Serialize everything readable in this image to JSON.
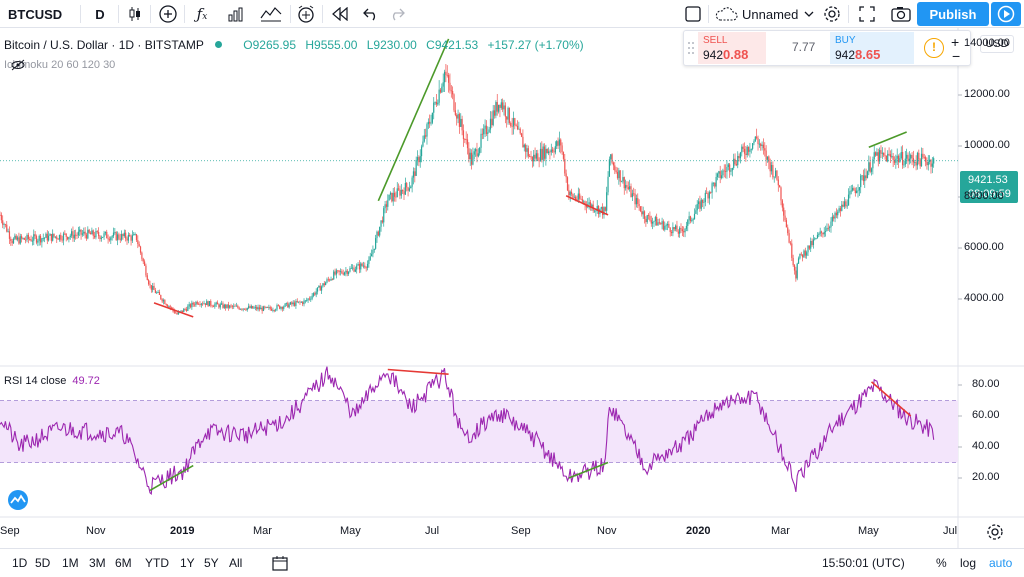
{
  "toolbar": {
    "symbol": "BTCUSD",
    "interval": "D",
    "layout_name": "Unnamed",
    "publish_label": "Publish",
    "icons": [
      "candles-icon",
      "add-compare-icon",
      "indicators-icon",
      "templates-icon",
      "alert-icon",
      "replay-icon",
      "undo-icon",
      "redo-icon",
      "fullscreen-icon",
      "cloud-icon",
      "settings-icon",
      "snapshot-icon"
    ]
  },
  "legend": {
    "title": "Bitcoin / U.S. Dollar · 1D · BITSTAMP",
    "open": "O9265.95",
    "high": "H9555.00",
    "low": "L9230.00",
    "close": "C9421.53",
    "change": "+157.27 (+1.70%)",
    "ichimoku": "Ichimoku 20 60 120 30"
  },
  "trade": {
    "sell_label": "SELL",
    "sell_price_main": "942",
    "sell_price_hl": "0.88",
    "spread": "7.77",
    "buy_label": "BUY",
    "buy_price_main": "942",
    "buy_price_hl": "8.65",
    "info": "!"
  },
  "price_axis": {
    "currency": "USD",
    "ticks": [
      "14000.00",
      "12000.00",
      "10000.00",
      "8000.00",
      "6000.00",
      "4000.00"
    ],
    "tick_values": [
      14000,
      12000,
      10000,
      8000,
      6000,
      4000
    ],
    "current_price": "9421.53",
    "countdown": "08:09:59"
  },
  "rsi": {
    "label": "RSI 14 close",
    "value": "49.72",
    "ticks": [
      "80.00",
      "60.00",
      "40.00",
      "20.00"
    ],
    "tick_values": [
      80,
      60,
      40,
      20
    ],
    "upper_band": 70,
    "lower_band": 30
  },
  "time_axis": [
    "Sep",
    "Nov",
    "2019",
    "Mar",
    "May",
    "Jul",
    "Sep",
    "Nov",
    "2020",
    "Mar",
    "May",
    "Jul"
  ],
  "bottom": {
    "ranges": [
      "1D",
      "5D",
      "1M",
      "3M",
      "6M",
      "YTD",
      "1Y",
      "5Y",
      "All"
    ],
    "clock": "15:50:01 (UTC)",
    "percent": "%",
    "log": "log",
    "auto": "auto"
  },
  "colors": {
    "up": "#26a69a",
    "down": "#ef5350",
    "rsi": "#9c27b0",
    "rsi_band": "#f3e5fb",
    "accent": "#2196f3",
    "trend_green": "#4c9a2a",
    "trend_red": "#e53935"
  },
  "chart_data": {
    "type": "candlestick",
    "price_anchors": [
      [
        "2018-08-01",
        7300
      ],
      [
        "2018-08-10",
        6300
      ],
      [
        "2018-09-01",
        6400
      ],
      [
        "2018-10-01",
        6550
      ],
      [
        "2018-11-10",
        6400
      ],
      [
        "2018-11-20",
        4500
      ],
      [
        "2018-12-10",
        3400
      ],
      [
        "2018-12-25",
        3900
      ],
      [
        "2019-01-15",
        3700
      ],
      [
        "2019-02-15",
        3600
      ],
      [
        "2019-03-15",
        3900
      ],
      [
        "2019-04-05",
        4950
      ],
      [
        "2019-05-01",
        5400
      ],
      [
        "2019-05-15",
        7900
      ],
      [
        "2019-06-01",
        8500
      ],
      [
        "2019-06-26",
        12900
      ],
      [
        "2019-07-16",
        9400
      ],
      [
        "2019-08-06",
        11800
      ],
      [
        "2019-08-29",
        9500
      ],
      [
        "2019-09-20",
        10100
      ],
      [
        "2019-09-26",
        8100
      ],
      [
        "2019-10-23",
        7400
      ],
      [
        "2019-10-26",
        9500
      ],
      [
        "2019-11-22",
        7200
      ],
      [
        "2019-12-18",
        6600
      ],
      [
        "2020-01-15",
        8800
      ],
      [
        "2020-02-12",
        10300
      ],
      [
        "2020-02-28",
        8600
      ],
      [
        "2020-03-12",
        4900
      ],
      [
        "2020-03-13",
        5500
      ],
      [
        "2020-04-10",
        7200
      ],
      [
        "2020-04-30",
        8700
      ],
      [
        "2020-05-10",
        9600
      ],
      [
        "2020-06-01",
        9500
      ],
      [
        "2020-06-22",
        9420
      ]
    ],
    "rsi_anchors": [
      [
        "2018-08-01",
        60
      ],
      [
        "2018-08-15",
        40
      ],
      [
        "2018-09-15",
        52
      ],
      [
        "2018-11-01",
        48
      ],
      [
        "2018-11-20",
        15
      ],
      [
        "2018-12-15",
        25
      ],
      [
        "2018-12-31",
        50
      ],
      [
        "2019-02-01",
        48
      ],
      [
        "2019-03-01",
        58
      ],
      [
        "2019-04-02",
        88
      ],
      [
        "2019-04-20",
        60
      ],
      [
        "2019-05-14",
        90
      ],
      [
        "2019-06-01",
        65
      ],
      [
        "2019-06-26",
        87
      ],
      [
        "2019-07-10",
        45
      ],
      [
        "2019-08-06",
        62
      ],
      [
        "2019-09-01",
        45
      ],
      [
        "2019-09-26",
        20
      ],
      [
        "2019-10-23",
        28
      ],
      [
        "2019-10-26",
        68
      ],
      [
        "2019-11-22",
        28
      ],
      [
        "2019-12-20",
        42
      ],
      [
        "2020-01-15",
        68
      ],
      [
        "2020-02-12",
        72
      ],
      [
        "2020-03-12",
        16
      ],
      [
        "2020-04-10",
        55
      ],
      [
        "2020-05-10",
        80
      ],
      [
        "2020-06-01",
        60
      ],
      [
        "2020-06-22",
        50
      ]
    ],
    "divergence_lines": [
      {
        "pane": "price",
        "from": [
          "2018-11-23",
          3850
        ],
        "to": [
          "2018-12-22",
          3300
        ],
        "color": "red"
      },
      {
        "pane": "price",
        "from": [
          "2019-05-08",
          7850
        ],
        "to": [
          "2019-06-29",
          14200
        ],
        "color": "green"
      },
      {
        "pane": "price",
        "from": [
          "2019-09-24",
          8050
        ],
        "to": [
          "2019-10-25",
          7300
        ],
        "color": "red"
      },
      {
        "pane": "price",
        "from": [
          "2020-05-05",
          9950
        ],
        "to": [
          "2020-06-02",
          10550
        ],
        "color": "green"
      },
      {
        "pane": "rsi",
        "from": [
          "2018-11-20",
          12
        ],
        "to": [
          "2018-12-22",
          28
        ],
        "color": "green"
      },
      {
        "pane": "rsi",
        "from": [
          "2019-05-15",
          90
        ],
        "to": [
          "2019-06-29",
          87
        ],
        "color": "red"
      },
      {
        "pane": "rsi",
        "from": [
          "2019-09-26",
          20
        ],
        "to": [
          "2019-10-25",
          30
        ],
        "color": "green"
      },
      {
        "pane": "rsi",
        "from": [
          "2020-05-07",
          82
        ],
        "to": [
          "2020-06-05",
          60
        ],
        "color": "red"
      }
    ],
    "ylim_price": [
      3000,
      14000
    ],
    "ylim_rsi": [
      10,
      95
    ],
    "x_range": [
      "2018-08-01",
      "2020-07-10"
    ]
  }
}
